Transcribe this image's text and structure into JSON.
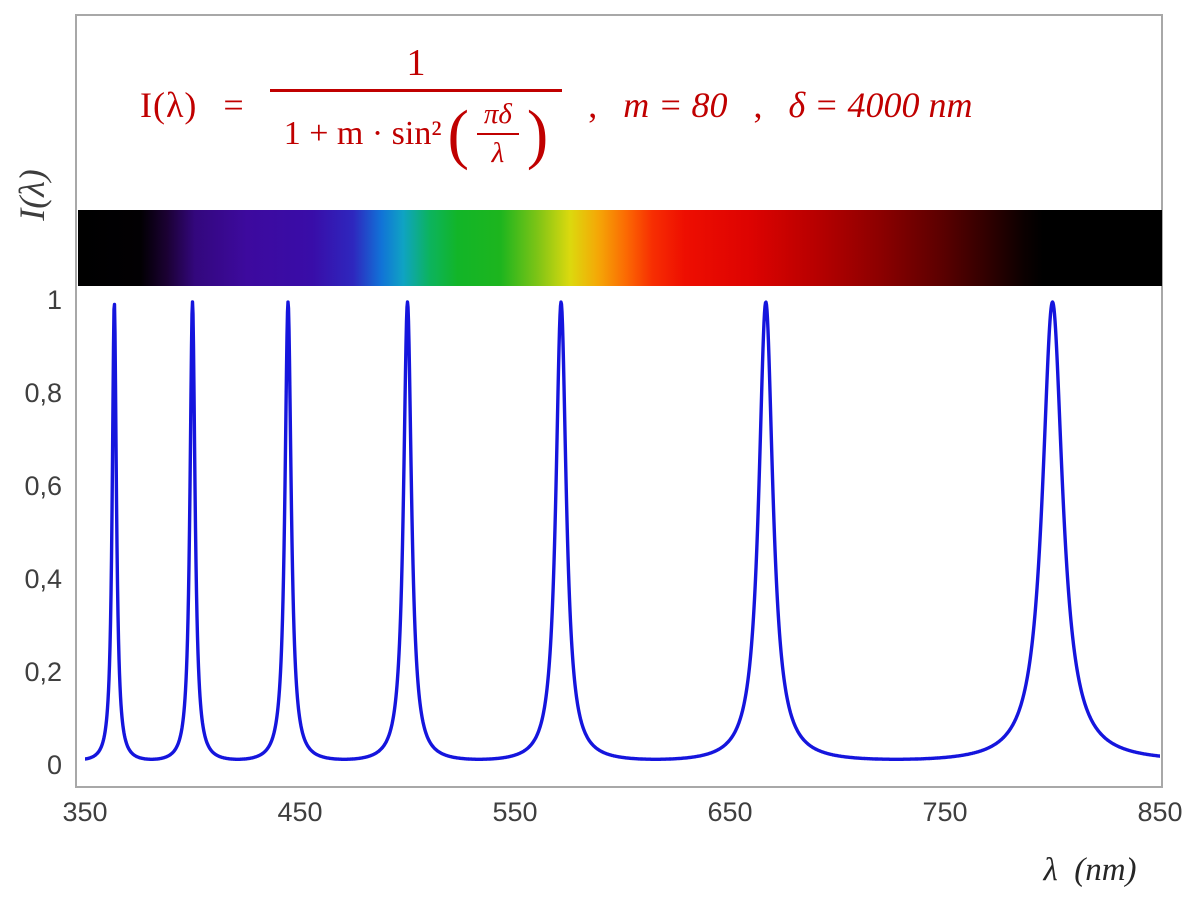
{
  "formula": {
    "lhs": "I(λ)",
    "eq": "=",
    "numerator": "1",
    "den_prefix": "1 + m · sin²",
    "paren_open": "(",
    "paren_close": ")",
    "inner_num": "πδ",
    "inner_den": "λ",
    "comma1": ",",
    "param_m": "m = 80",
    "comma2": ",",
    "param_delta": "δ = 4000 nm",
    "color": "#c00000"
  },
  "y_axis": {
    "title": "I(λ)",
    "tick_labels": [
      "1",
      "0,8",
      "0,6",
      "0,4",
      "0,2",
      "0"
    ]
  },
  "x_axis": {
    "title": "λ  (nm)",
    "tick_labels": [
      "350",
      "450",
      "550",
      "650",
      "750",
      "850"
    ]
  },
  "chart_data": {
    "type": "line",
    "title": "Airy / Fabry-Perot transmission function I(λ) = 1 / (1 + m·sin²(πδ/λ))",
    "params": {
      "m": 80,
      "delta_nm": 4000
    },
    "x_range_nm": [
      350,
      850
    ],
    "y_range": [
      0,
      1
    ],
    "x_tick_values": [
      350,
      450,
      550,
      650,
      750,
      850
    ],
    "y_tick_values": [
      0,
      0.2,
      0.4,
      0.6,
      0.8,
      1
    ],
    "peak_wavelengths_nm": [
      363.64,
      400.0,
      444.44,
      500.0,
      571.43,
      666.67,
      800.0
    ],
    "peak_value": 1.0,
    "baseline_min_value": 0.0123,
    "curve_color": "#1515dd",
    "grid": false,
    "legend": false
  },
  "spectrum_bar": {
    "range_nm": [
      350,
      850
    ],
    "stops": [
      {
        "nm": 350,
        "color": "#000000"
      },
      {
        "nm": 379,
        "color": "#020003"
      },
      {
        "nm": 391,
        "color": "#1b0133"
      },
      {
        "nm": 404,
        "color": "#33077d"
      },
      {
        "nm": 428,
        "color": "#3d0a9e"
      },
      {
        "nm": 458,
        "color": "#390da8"
      },
      {
        "nm": 477,
        "color": "#2e27be"
      },
      {
        "nm": 490,
        "color": "#1173d7"
      },
      {
        "nm": 500,
        "color": "#0fa3c3"
      },
      {
        "nm": 512,
        "color": "#0cb35f"
      },
      {
        "nm": 525,
        "color": "#12b528"
      },
      {
        "nm": 545,
        "color": "#1db51e"
      },
      {
        "nm": 562,
        "color": "#7ec416"
      },
      {
        "nm": 577,
        "color": "#dcd90e"
      },
      {
        "nm": 590,
        "color": "#f5a706"
      },
      {
        "nm": 603,
        "color": "#fb6903"
      },
      {
        "nm": 615,
        "color": "#f72e02"
      },
      {
        "nm": 630,
        "color": "#ee0e01"
      },
      {
        "nm": 660,
        "color": "#dd0301"
      },
      {
        "nm": 690,
        "color": "#b80000"
      },
      {
        "nm": 720,
        "color": "#8c0000"
      },
      {
        "nm": 748,
        "color": "#5c0000"
      },
      {
        "nm": 770,
        "color": "#2f0000"
      },
      {
        "nm": 786,
        "color": "#0c0000"
      },
      {
        "nm": 795,
        "color": "#000000"
      },
      {
        "nm": 850,
        "color": "#000000"
      }
    ]
  }
}
